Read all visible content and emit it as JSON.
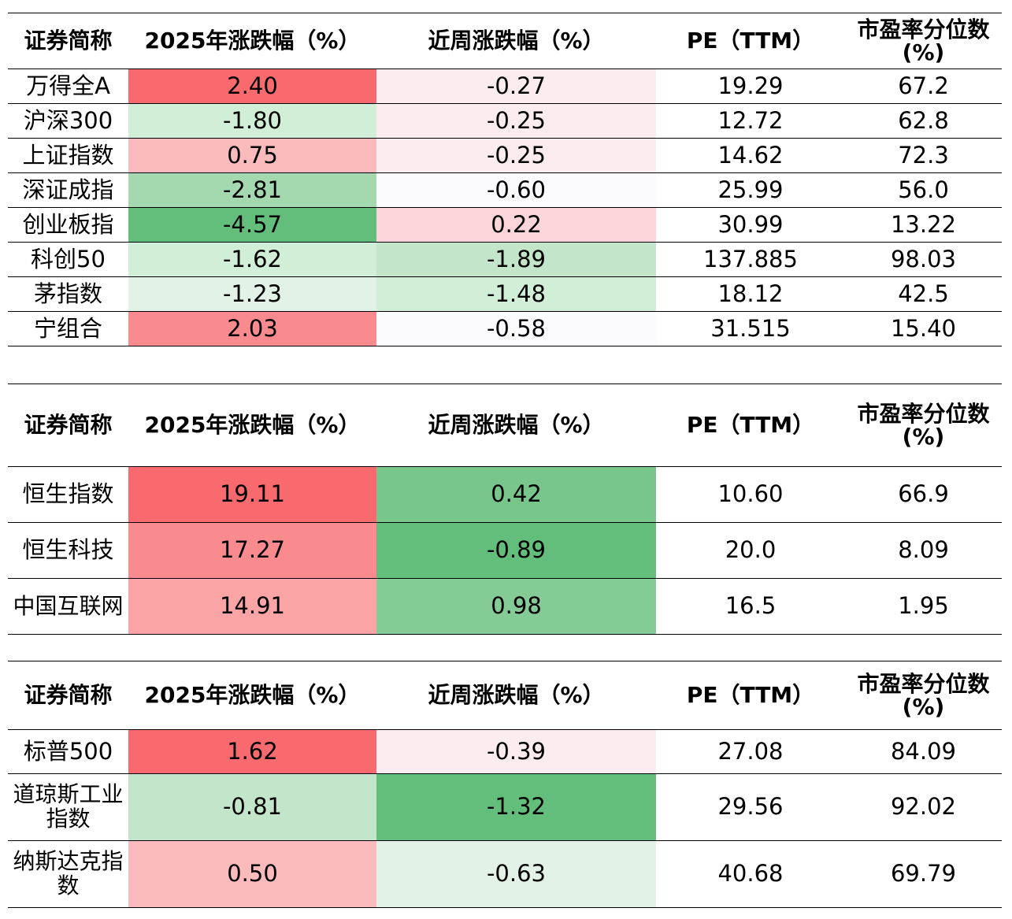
{
  "header": {
    "name": "证券简称",
    "ytd": "2025年涨跌幅（%）",
    "week": "近周涨跌幅（%）",
    "pe": "PE（TTM）",
    "pct_line1": "市盈率分位数",
    "pct_line2": "(%)"
  },
  "colors": {
    "red_strong": "#f86a6e",
    "red_medium": "#f98a8d",
    "red_light": "#faa4a6",
    "red_pale": "#fbbabc",
    "red_faint": "#fbd5d9",
    "red_tint": "#fcecef",
    "white_tint": "#fbfbfd",
    "green_strong": "#63be7b",
    "green_medium": "#79c68c",
    "green_soft": "#85cb96",
    "green_light": "#a4d8af",
    "green_pale": "#c3e5c9",
    "green_faint": "#d1eed6",
    "green_tint": "#e2f2e6"
  },
  "tables": [
    {
      "rows": [
        {
          "name": "万得全A",
          "ytd": "2.40",
          "week": "-0.27",
          "pe": "19.29",
          "pct": "67.2",
          "ytd_color": "#f86a6e",
          "week_color": "#fcecef"
        },
        {
          "name": "沪深300",
          "ytd": "-1.80",
          "week": "-0.25",
          "pe": "12.72",
          "pct": "62.8",
          "ytd_color": "#d1eed6",
          "week_color": "#fcecef"
        },
        {
          "name": "上证指数",
          "ytd": "0.75",
          "week": "-0.25",
          "pe": "14.62",
          "pct": "72.3",
          "ytd_color": "#fbbabc",
          "week_color": "#fcecef"
        },
        {
          "name": "深证成指",
          "ytd": "-2.81",
          "week": "-0.60",
          "pe": "25.99",
          "pct": "56.0",
          "ytd_color": "#a4d8af",
          "week_color": "#fbfbfd"
        },
        {
          "name": "创业板指",
          "ytd": "-4.57",
          "week": "0.22",
          "pe": "30.99",
          "pct": "13.22",
          "ytd_color": "#63be7b",
          "week_color": "#fbd5d9"
        },
        {
          "name": "科创50",
          "ytd": "-1.62",
          "week": "-1.89",
          "pe": "137.885",
          "pct": "98.03",
          "ytd_color": "#d1eed6",
          "week_color": "#c3e5c9"
        },
        {
          "name": "茅指数",
          "ytd": "-1.23",
          "week": "-1.48",
          "pe": "18.12",
          "pct": "42.5",
          "ytd_color": "#e2f2e6",
          "week_color": "#d1eed6"
        },
        {
          "name": "宁组合",
          "ytd": "2.03",
          "week": "-0.58",
          "pe": "31.515",
          "pct": "15.40",
          "ytd_color": "#f98a8d",
          "week_color": "#fbfbfd"
        }
      ]
    },
    {
      "rows": [
        {
          "name": "恒生指数",
          "ytd": "19.11",
          "week": "0.42",
          "pe": "10.60",
          "pct": "66.9",
          "ytd_color": "#f86a6e",
          "week_color": "#79c68c"
        },
        {
          "name": "恒生科技",
          "ytd": "17.27",
          "week": "-0.89",
          "pe": "20.0",
          "pct": "8.09",
          "ytd_color": "#f98a8d",
          "week_color": "#63be7b"
        },
        {
          "name": "中国互联网",
          "ytd": "14.91",
          "week": "0.98",
          "pe": "16.5",
          "pct": "1.95",
          "ytd_color": "#faa4a6",
          "week_color": "#85cb96"
        }
      ]
    },
    {
      "rows": [
        {
          "name": "标普500",
          "ytd": "1.62",
          "week": "-0.39",
          "pe": "27.08",
          "pct": "84.09",
          "ytd_color": "#f86a6e",
          "week_color": "#fcecef"
        },
        {
          "name": "道琼斯工业指数",
          "ytd": "-0.81",
          "week": "-1.32",
          "pe": "29.56",
          "pct": "92.02",
          "ytd_color": "#c3e5c9",
          "week_color": "#63be7b"
        },
        {
          "name": "纳斯达克指数",
          "ytd": "0.50",
          "week": "-0.63",
          "pe": "40.68",
          "pct": "69.79",
          "ytd_color": "#fbbabc",
          "week_color": "#e2f2e6"
        }
      ]
    }
  ]
}
